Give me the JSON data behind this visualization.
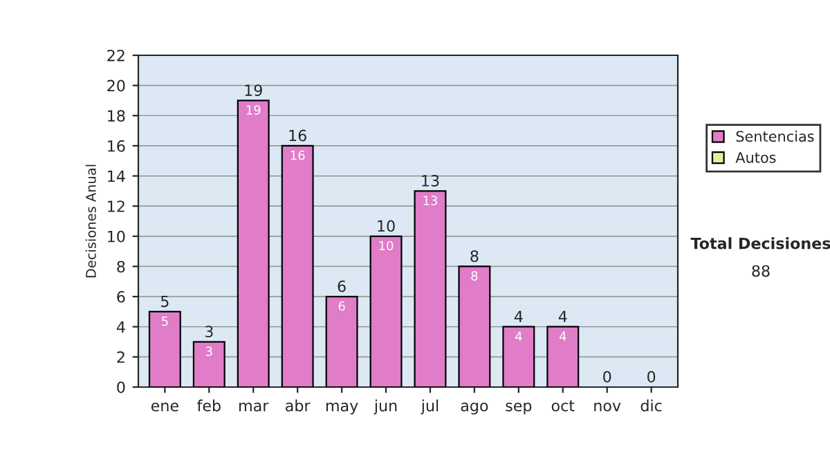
{
  "chart_data": {
    "type": "bar",
    "ylabel": "Decisiones Anual",
    "categories": [
      "ene",
      "feb",
      "mar",
      "abr",
      "may",
      "jun",
      "jul",
      "ago",
      "sep",
      "oct",
      "nov",
      "dic"
    ],
    "series": [
      {
        "name": "Sentencias",
        "color": "#e07cc8",
        "values": [
          5,
          3,
          19,
          16,
          6,
          10,
          13,
          8,
          4,
          4,
          0,
          0
        ],
        "value_labels": [
          "5",
          "3",
          "19",
          "16",
          "6",
          "10",
          "13",
          "8",
          "4",
          "4",
          null,
          null
        ]
      },
      {
        "name": "Autos",
        "color": "#e8eca0",
        "values": [
          null,
          null,
          null,
          null,
          null,
          null,
          null,
          null,
          null,
          null,
          null,
          null
        ]
      }
    ],
    "stacked": true,
    "totals": [
      "5",
      "3",
      "19",
      "16",
      "6",
      "10",
      "13",
      "8",
      "4",
      "4",
      "0",
      "0"
    ],
    "ylim": [
      0,
      22
    ],
    "yticks": [
      0,
      2,
      4,
      6,
      8,
      10,
      12,
      14,
      16,
      18,
      20,
      22
    ],
    "grid": "y",
    "legend": "right",
    "annotations": [
      "Total Decisiones",
      "88"
    ]
  }
}
